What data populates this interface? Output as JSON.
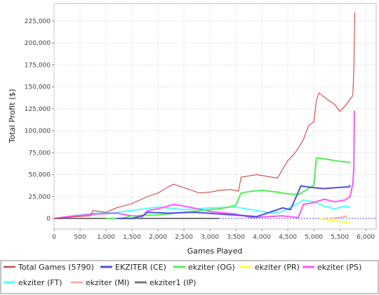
{
  "chart_data": {
    "type": "line",
    "title": "",
    "xlabel": "Games Played",
    "ylabel": "Total Profit ($)",
    "xlim": [
      0,
      6200
    ],
    "ylim": [
      -12000,
      245000
    ],
    "x_ticks": [
      0,
      500,
      1000,
      1500,
      2000,
      2500,
      3000,
      3500,
      4000,
      4500,
      5000,
      5500,
      6000
    ],
    "y_ticks": [
      0,
      25000,
      50000,
      75000,
      100000,
      125000,
      150000,
      175000,
      200000,
      225000
    ],
    "x_tick_labels": [
      "0",
      "500",
      "1,000",
      "1,500",
      "2,000",
      "2,500",
      "3,000",
      "3,500",
      "4,000",
      "4,500",
      "5,000",
      "5,500",
      "6,000"
    ],
    "y_tick_labels": [
      "0",
      "25,000",
      "50,000",
      "75,000",
      "100,000",
      "125,000",
      "150,000",
      "175,000",
      "200,000",
      "225,000"
    ],
    "grid": true,
    "legend_position": "bottom",
    "series": [
      {
        "name": "Total Games (5790)",
        "color": "#cc3333",
        "width": 1,
        "points": [
          [
            0,
            0
          ],
          [
            300,
            1500
          ],
          [
            700,
            3000
          ],
          [
            750,
            9000
          ],
          [
            1000,
            7000
          ],
          [
            1200,
            12000
          ],
          [
            1500,
            17000
          ],
          [
            1800,
            25000
          ],
          [
            2000,
            29000
          ],
          [
            2200,
            36000
          ],
          [
            2300,
            39000
          ],
          [
            2600,
            33000
          ],
          [
            2800,
            29000
          ],
          [
            3000,
            30000
          ],
          [
            3200,
            32000
          ],
          [
            3400,
            33000
          ],
          [
            3550,
            31000
          ],
          [
            3600,
            47000
          ],
          [
            3900,
            50000
          ],
          [
            4100,
            48000
          ],
          [
            4300,
            46000
          ],
          [
            4500,
            66000
          ],
          [
            4600,
            72000
          ],
          [
            4700,
            80000
          ],
          [
            4800,
            90000
          ],
          [
            4900,
            106000
          ],
          [
            5000,
            110000
          ],
          [
            5050,
            135000
          ],
          [
            5100,
            143000
          ],
          [
            5250,
            136000
          ],
          [
            5400,
            130000
          ],
          [
            5500,
            122000
          ],
          [
            5600,
            128000
          ],
          [
            5700,
            136000
          ],
          [
            5750,
            140000
          ],
          [
            5770,
            170000
          ],
          [
            5790,
            235000
          ]
        ]
      },
      {
        "name": "EKZITER (CE)",
        "color": "#4f4fe6",
        "width": 2,
        "points": [
          [
            1200,
            0
          ],
          [
            1500,
            0
          ],
          [
            1700,
            3000
          ],
          [
            1800,
            7000
          ],
          [
            2200,
            6000
          ],
          [
            2700,
            7000
          ],
          [
            3200,
            5000
          ],
          [
            3700,
            3000
          ],
          [
            3900,
            2000
          ],
          [
            4200,
            8000
          ],
          [
            4400,
            12000
          ],
          [
            4550,
            10000
          ],
          [
            4700,
            30000
          ],
          [
            4750,
            37000
          ],
          [
            5000,
            35000
          ],
          [
            5200,
            34000
          ],
          [
            5400,
            35000
          ],
          [
            5680,
            36000
          ],
          [
            5700,
            38000
          ]
        ]
      },
      {
        "name": "ekziter (OG)",
        "color": "#55ee55",
        "width": 2,
        "points": [
          [
            1000,
            0
          ],
          [
            1300,
            0
          ],
          [
            1500,
            3000
          ],
          [
            2000,
            4000
          ],
          [
            2500,
            7000
          ],
          [
            3000,
            10000
          ],
          [
            3200,
            11000
          ],
          [
            3500,
            15000
          ],
          [
            3600,
            29000
          ],
          [
            3800,
            31000
          ],
          [
            4000,
            32000
          ],
          [
            4300,
            30000
          ],
          [
            4500,
            28000
          ],
          [
            4700,
            27000
          ],
          [
            5000,
            38000
          ],
          [
            5050,
            69000
          ],
          [
            5300,
            67000
          ],
          [
            5500,
            65000
          ],
          [
            5700,
            64000
          ]
        ]
      },
      {
        "name": "ekziter (PR)",
        "color": "#ffff44",
        "width": 2,
        "points": [
          [
            5100,
            0
          ],
          [
            5300,
            -2000
          ],
          [
            5500,
            -3500
          ],
          [
            5700,
            -5000
          ]
        ]
      },
      {
        "name": "ekziter (PS)",
        "color": "#ff55ff",
        "width": 2,
        "points": [
          [
            0,
            0
          ],
          [
            400,
            3000
          ],
          [
            800,
            5000
          ],
          [
            1200,
            6000
          ],
          [
            1500,
            3000
          ],
          [
            1700,
            2000
          ],
          [
            1800,
            9000
          ],
          [
            2000,
            11000
          ],
          [
            2300,
            16000
          ],
          [
            2600,
            13000
          ],
          [
            3000,
            8000
          ],
          [
            3500,
            5000
          ],
          [
            3800,
            1000
          ],
          [
            4400,
            3000
          ],
          [
            4700,
            1000
          ],
          [
            4800,
            16000
          ],
          [
            5000,
            18000
          ],
          [
            5200,
            22000
          ],
          [
            5400,
            19000
          ],
          [
            5600,
            21000
          ],
          [
            5700,
            25000
          ],
          [
            5750,
            40000
          ],
          [
            5770,
            58000
          ],
          [
            5780,
            123000
          ]
        ]
      },
      {
        "name": "ekziter (FT)",
        "color": "#55ffff",
        "width": 2,
        "points": [
          [
            0,
            0
          ],
          [
            500,
            4000
          ],
          [
            800,
            6000
          ],
          [
            1200,
            7000
          ],
          [
            1500,
            9000
          ],
          [
            2000,
            13000
          ],
          [
            2500,
            10000
          ],
          [
            3000,
            12000
          ],
          [
            3500,
            13000
          ],
          [
            3800,
            10000
          ],
          [
            4200,
            6000
          ],
          [
            4400,
            8000
          ],
          [
            4700,
            17000
          ],
          [
            4800,
            21000
          ],
          [
            5000,
            19000
          ],
          [
            5200,
            14000
          ],
          [
            5400,
            11000
          ],
          [
            5600,
            14000
          ],
          [
            5700,
            13000
          ]
        ]
      },
      {
        "name": "ekziter (MI)",
        "color": "#ffaaaa",
        "width": 2,
        "points": [
          [
            5300,
            0
          ],
          [
            5500,
            1000
          ],
          [
            5650,
            3000
          ]
        ]
      },
      {
        "name": "ekziter1 (IP)",
        "color": "#777777",
        "width": 2,
        "points": [
          [
            0,
            0
          ],
          [
            500,
            0
          ],
          [
            1000,
            0
          ],
          [
            1500,
            0
          ],
          [
            2000,
            0
          ],
          [
            2500,
            0
          ],
          [
            3000,
            0
          ],
          [
            3180,
            0
          ]
        ]
      }
    ]
  }
}
